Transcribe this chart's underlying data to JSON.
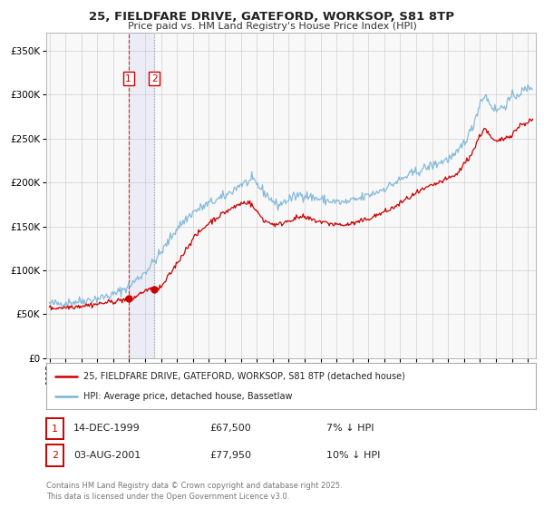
{
  "title": "25, FIELDFARE DRIVE, GATEFORD, WORKSOP, S81 8TP",
  "subtitle": "Price paid vs. HM Land Registry's House Price Index (HPI)",
  "legend_line1": "25, FIELDFARE DRIVE, GATEFORD, WORKSOP, S81 8TP (detached house)",
  "legend_line2": "HPI: Average price, detached house, Bassetlaw",
  "hpi_color": "#7ab4d8",
  "price_color": "#cc0000",
  "annotation1_date": "14-DEC-1999",
  "annotation1_price": "£67,500",
  "annotation1_hpi": "7% ↓ HPI",
  "annotation2_date": "03-AUG-2001",
  "annotation2_price": "£77,950",
  "annotation2_hpi": "10% ↓ HPI",
  "sale1_x": 1999.95,
  "sale1_y": 67500,
  "sale2_x": 2001.58,
  "sale2_y": 77950,
  "footer": "Contains HM Land Registry data © Crown copyright and database right 2025.\nThis data is licensed under the Open Government Licence v3.0.",
  "ylim": [
    0,
    370000
  ],
  "xlim": [
    1994.8,
    2025.5
  ],
  "background_color": "#ffffff",
  "grid_color": "#d0d0d0"
}
